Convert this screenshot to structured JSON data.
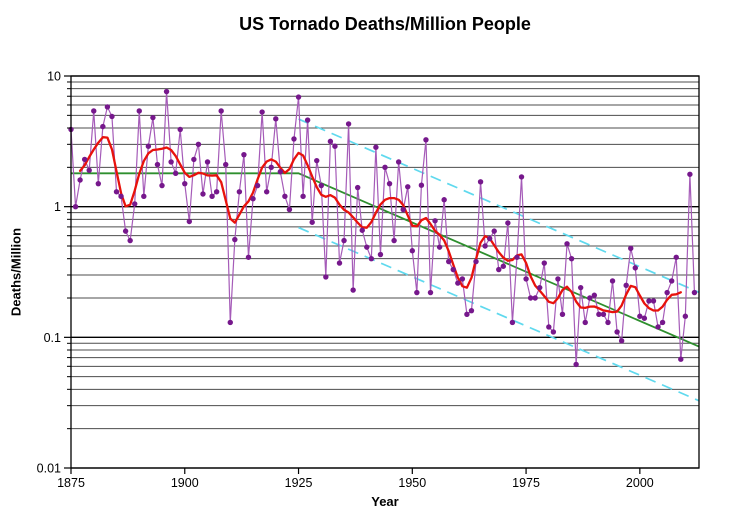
{
  "title": "US Tornado Deaths/Million People",
  "chart_data": {
    "type": "line",
    "title": "US Tornado Deaths/Million People",
    "xlabel": "Year",
    "ylabel": "Deaths/Million",
    "y_scale": "log",
    "xlim": [
      1875,
      2013
    ],
    "ylim": [
      0.01,
      10
    ],
    "x_ticks": [
      1875,
      1900,
      1925,
      1950,
      1975,
      2000
    ],
    "y_ticks": [
      10,
      1,
      0.1,
      0.01
    ],
    "y_tick_labels": [
      "10",
      "1",
      "0.1",
      "0.01"
    ],
    "grid": "log-minor-and-major",
    "legend": "none",
    "annual_series": {
      "name": "annual-tornado-deaths-per-million",
      "start_year": 1875,
      "end_year": 2012,
      "values": [
        3.9,
        1.0,
        1.6,
        2.3,
        1.9,
        5.4,
        1.5,
        4.1,
        5.8,
        4.9,
        1.3,
        1.2,
        0.65,
        0.55,
        1.05,
        5.4,
        1.2,
        2.9,
        4.8,
        2.1,
        1.45,
        7.6,
        2.2,
        1.8,
        3.9,
        1.5,
        0.77,
        2.3,
        3.0,
        1.25,
        2.2,
        1.2,
        1.3,
        5.4,
        2.1,
        0.13,
        0.56,
        1.3,
        2.5,
        0.41,
        1.15,
        1.45,
        5.3,
        1.3,
        2.0,
        4.7,
        1.85,
        1.2,
        0.95,
        3.3,
        6.9,
        1.2,
        4.6,
        0.76,
        2.25,
        1.45,
        0.29,
        3.16,
        2.9,
        0.37,
        0.55,
        4.3,
        0.23,
        1.4,
        0.66,
        0.49,
        0.4,
        2.85,
        0.43,
        2.0,
        1.5,
        0.55,
        2.2,
        0.95,
        1.42,
        0.46,
        0.22,
        1.46,
        3.25,
        0.22,
        0.78,
        0.49,
        1.13,
        0.38,
        0.33,
        0.26,
        0.28,
        0.15,
        0.16,
        0.38,
        1.55,
        0.5,
        0.57,
        0.65,
        0.33,
        0.35,
        0.75,
        0.13,
        0.41,
        1.69,
        0.28,
        0.2,
        0.2,
        0.24,
        0.37,
        0.12,
        0.11,
        0.28,
        0.15,
        0.52,
        0.4,
        0.062,
        0.24,
        0.13,
        0.2,
        0.21,
        0.15,
        0.15,
        0.13,
        0.27,
        0.11,
        0.094,
        0.25,
        0.48,
        0.34,
        0.145,
        0.14,
        0.19,
        0.19,
        0.12,
        0.13,
        0.22,
        0.27,
        0.41,
        0.068,
        0.145,
        1.77,
        0.22
      ]
    },
    "smoothed_series": {
      "name": "gaussian-smoothed-death-rate",
      "method": "gaussian-kernel-on-log10-values",
      "sigma_years": 1.6,
      "kernel_halfwidth_years": 4,
      "start_year": 1877,
      "end_year": 2009
    },
    "trend_line": {
      "name": "long-term-trend",
      "points": [
        [
          1875,
          1.8
        ],
        [
          1925,
          1.8
        ],
        [
          2013,
          0.085
        ]
      ]
    },
    "bound_lines": {
      "name": "factor-bounds-around-trend",
      "factor": 2.6,
      "upper_points": [
        [
          1925,
          4.68
        ],
        [
          2013,
          0.221
        ]
      ],
      "lower_points": [
        [
          1925,
          0.692
        ],
        [
          2013,
          0.0327
        ]
      ],
      "style": "dashed"
    },
    "colors": {
      "annual_line": "#A55BB8",
      "annual_marker": "#76188C",
      "smoothed": "#E8120C",
      "trend": "#2E8F2E",
      "bounds": "#5FD9EE",
      "grid_minor": "#4D4D4D",
      "grid_major": "#000000",
      "axis": "#000000",
      "text": "#000000",
      "background": "#FFFFFF"
    }
  }
}
